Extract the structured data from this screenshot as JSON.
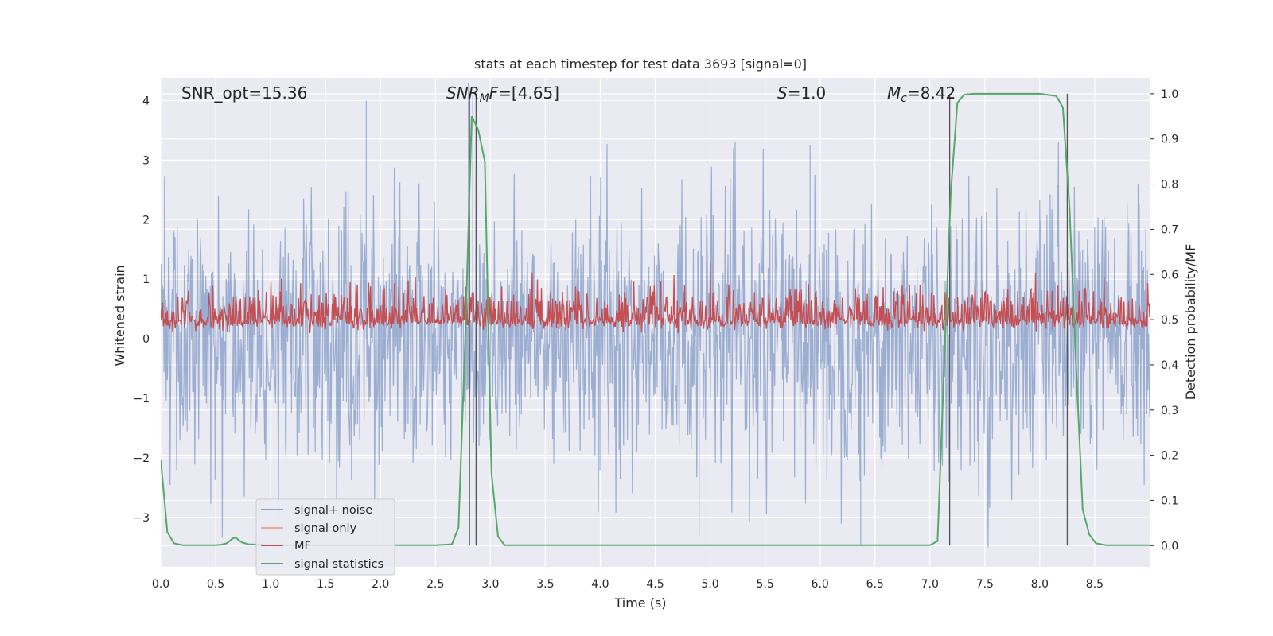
{
  "chart_data": {
    "type": "line",
    "title": "stats at each timestep for test data 3693 [signal=0]",
    "xlabel": "Time (s)",
    "ylabel_left": "Whitened strain",
    "ylabel_right": "Detection probability/MF",
    "xlim": [
      0.0,
      9.0
    ],
    "ylim_left": [
      -3.83,
      4.38
    ],
    "ylim_right": [
      -0.047,
      1.035
    ],
    "x_ticks": [
      "0.0",
      "0.5",
      "1.0",
      "1.5",
      "2.0",
      "2.5",
      "3.0",
      "3.5",
      "4.0",
      "4.5",
      "5.0",
      "5.5",
      "6.0",
      "6.5",
      "7.0",
      "7.5",
      "8.0",
      "8.5"
    ],
    "y_ticks_left": [
      "−3",
      "−2",
      "−1",
      "0",
      "1",
      "2",
      "3",
      "4"
    ],
    "y_ticks_right": [
      "0.0",
      "0.1",
      "0.2",
      "0.3",
      "0.4",
      "0.5",
      "0.6",
      "0.7",
      "0.8",
      "0.9",
      "1.0"
    ],
    "grid": true,
    "legend_position": "lower-left",
    "annotations": [
      {
        "label": "SNR_opt=15.36",
        "x": 0.19
      },
      {
        "label": "SNR_MF=[4.65]",
        "x": 2.6
      },
      {
        "label": "S=1.0",
        "x": 5.6
      },
      {
        "label": "M_c=8.42",
        "x": 6.6
      }
    ],
    "annotation_parts": {
      "snr_opt": "SNR_opt=15.36",
      "snr_mf_a": "SNR",
      "snr_mf_sub": "M",
      "snr_mf_b": "F",
      "snr_mf_val": "=[4.65]",
      "s_var": "S",
      "s_val": "=1.0",
      "mc_var": "M",
      "mc_sub": "c",
      "mc_val": "=8.42"
    },
    "vertical_lines": [
      2.81,
      2.87,
      7.18,
      8.25
    ],
    "series": [
      {
        "name": "signal+ noise",
        "axis": "left",
        "color": "#4c72b0",
        "alpha": 0.5,
        "description_values": "dense noise, typical range -2.0 to 2.5, peaks to 4.0 near t=1.87 and t=2.80"
      },
      {
        "name": "signal only",
        "axis": "left",
        "color": "#dd8452",
        "alpha": 0.5,
        "values_note": "hidden"
      },
      {
        "name": "MF",
        "axis": "right",
        "color": "#c44e52",
        "baseline": 0.5,
        "range": [
          0.47,
          0.63
        ]
      },
      {
        "name": "signal statistics",
        "axis": "right",
        "color": "#55a868",
        "x": [
          0.0,
          0.06,
          0.12,
          0.2,
          0.3,
          0.4,
          0.5,
          0.55,
          0.6,
          0.65,
          0.68,
          0.74,
          0.8,
          0.9,
          1.0,
          1.5,
          2.0,
          2.5,
          2.65,
          2.71,
          2.77,
          2.83,
          2.89,
          2.95,
          3.01,
          3.07,
          3.13,
          3.5,
          4.0,
          5.0,
          6.0,
          7.0,
          7.07,
          7.13,
          7.19,
          7.25,
          7.31,
          7.4,
          7.6,
          7.8,
          8.0,
          8.15,
          8.21,
          8.27,
          8.33,
          8.39,
          8.45,
          8.51,
          8.6,
          9.0
        ],
        "values": [
          0.19,
          0.03,
          0.005,
          0.001,
          0.001,
          0.001,
          0.001,
          0.002,
          0.005,
          0.015,
          0.018,
          0.007,
          0.003,
          0.002,
          0.001,
          0.001,
          0.001,
          0.001,
          0.003,
          0.04,
          0.45,
          0.95,
          0.92,
          0.85,
          0.16,
          0.02,
          0.001,
          0.001,
          0.001,
          0.001,
          0.001,
          0.001,
          0.01,
          0.4,
          0.78,
          0.98,
          0.998,
          1.0,
          1.0,
          1.0,
          1.0,
          0.995,
          0.97,
          0.75,
          0.4,
          0.08,
          0.025,
          0.005,
          0.001,
          0.001
        ]
      }
    ]
  }
}
